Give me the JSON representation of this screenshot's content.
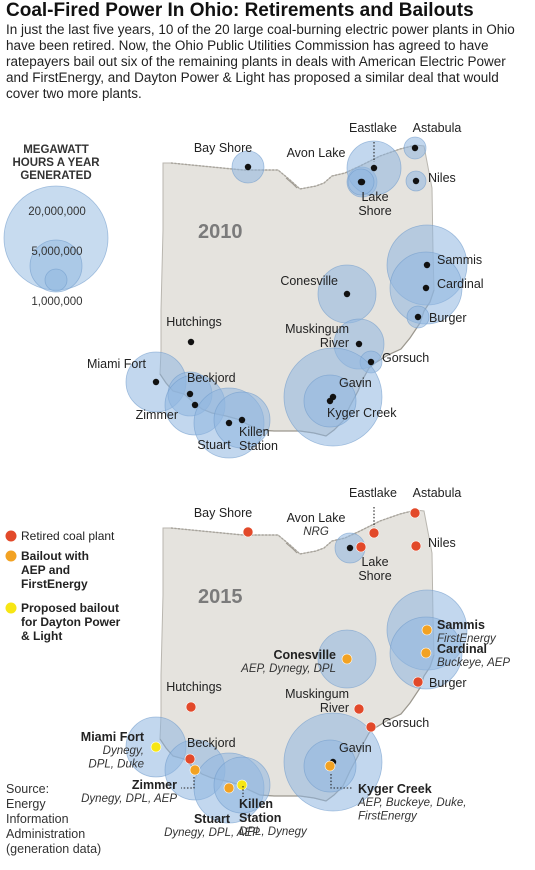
{
  "title": "Coal-Fired Power In Ohio: Retirements and Bailouts",
  "intro": "In just the last five years, 10 of the 20 large coal-burning electric power plants in Ohio have been retired. Now, the Ohio Public Utilities Commission has agreed to have ratepayers bail out six of the remaining plants in deals with American Electric Power and FirstEnergy, and Dayton Power & Light has proposed a similar deal that would cover two more plants.",
  "size_legend": {
    "title_lines": [
      "MEGAWATT",
      "HOURS A YEAR",
      "GENERATED"
    ],
    "values": [
      "20,000,000",
      "5,000,000",
      "1,000,000"
    ]
  },
  "map_2010": {
    "year": "2010"
  },
  "map_2015": {
    "year": "2015",
    "legend": [
      {
        "lines": [
          "Retired coal plant"
        ],
        "color": "#e2492a"
      },
      {
        "lines": [
          "Bailout with",
          "AEP and",
          "FirstEnergy"
        ],
        "color": "#f2a223"
      },
      {
        "lines": [
          "Proposed bailout",
          "for Dayton Power",
          "& Light"
        ],
        "color": "#f7e614"
      }
    ]
  },
  "plants_2010": [
    {
      "name": "Bay Shore"
    },
    {
      "name": "Avon Lake"
    },
    {
      "name": "Eastlake"
    },
    {
      "name": "Astabula"
    },
    {
      "name": "Lake Shore"
    },
    {
      "name": "Niles"
    },
    {
      "name": "Sammis"
    },
    {
      "name": "Cardinal"
    },
    {
      "name": "Burger"
    },
    {
      "name": "Conesville"
    },
    {
      "name": "Muskingum River"
    },
    {
      "name": "Gorsuch"
    },
    {
      "name": "Gavin"
    },
    {
      "name": "Kyger Creek"
    },
    {
      "name": "Hutchings"
    },
    {
      "name": "Miami Fort"
    },
    {
      "name": "Beckjord"
    },
    {
      "name": "Zimmer"
    },
    {
      "name": "Stuart"
    },
    {
      "name": "Killen Station"
    }
  ],
  "plants_2015": [
    {
      "name": "Bay Shore",
      "status": "retired"
    },
    {
      "name": "Avon Lake",
      "owner": "NRG",
      "status": "operating"
    },
    {
      "name": "Eastlake",
      "status": "retired"
    },
    {
      "name": "Astabula",
      "status": "retired"
    },
    {
      "name": "Lake Shore",
      "status": "retired"
    },
    {
      "name": "Niles",
      "status": "retired"
    },
    {
      "name": "Sammis",
      "owner": "FirstEnergy",
      "status": "bailout"
    },
    {
      "name": "Cardinal",
      "owner": "Buckeye, AEP",
      "status": "bailout"
    },
    {
      "name": "Burger",
      "status": "retired"
    },
    {
      "name": "Conesville",
      "owner": "AEP, Dynegy, DPL",
      "status": "bailout"
    },
    {
      "name": "Muskingum River",
      "status": "retired"
    },
    {
      "name": "Gorsuch",
      "status": "retired"
    },
    {
      "name": "Gavin",
      "status": "operating"
    },
    {
      "name": "Kyger Creek",
      "owner": "AEP, Buckeye, Duke, FirstEnergy",
      "status": "bailout"
    },
    {
      "name": "Hutchings",
      "status": "retired"
    },
    {
      "name": "Miami Fort",
      "owner": "Dynegy, DPL, Duke",
      "status": "proposed"
    },
    {
      "name": "Beckjord",
      "status": "retired"
    },
    {
      "name": "Zimmer",
      "owner": "Dynegy, DPL, AEP",
      "status": "bailout"
    },
    {
      "name": "Stuart",
      "owner": "Dynegy, DPL, AEP",
      "status": "bailout"
    },
    {
      "name": "Killen Station",
      "owner": "DPL, Dynegy",
      "status": "proposed"
    }
  ],
  "source": "Source:\nEnergy\nInformation\nAdministration\n(generation data)",
  "colors": {
    "state_fill": "#e5e3de",
    "state_stroke": "#b9b6af",
    "bubble_fill": "#8fb7e0",
    "bubble_stroke": "#6f9bcc",
    "retired": "#e2492a",
    "bailout": "#f2a223",
    "proposed": "#f7e614",
    "operating": "#111111"
  }
}
